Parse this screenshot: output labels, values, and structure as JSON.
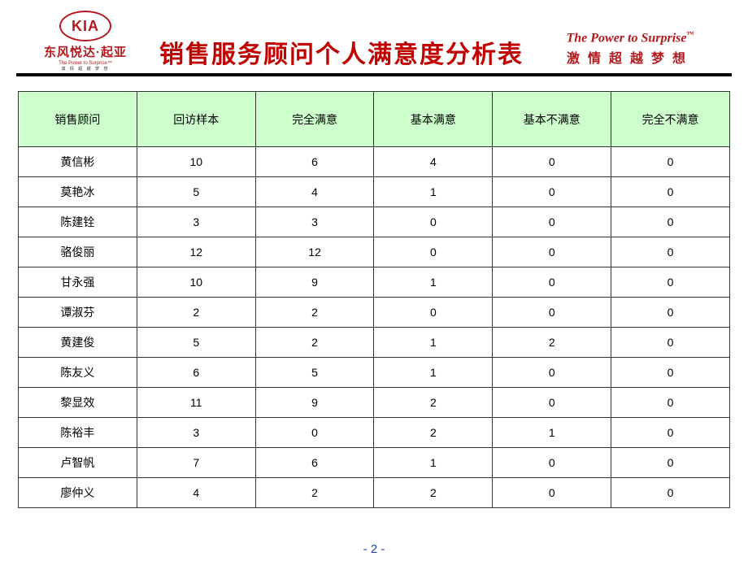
{
  "logo": {
    "brand_en": "KIA",
    "brand_cn": "东风悦达·起亚",
    "tagline_small_en": "The Power to Surprise™",
    "tagline_small_cn": "激 情 超 越 梦 想"
  },
  "title": "销售服务顾问个人满意度分析表",
  "slogan": {
    "en": "The Power to Surprise",
    "tm": "™",
    "cn": "激情超越梦想"
  },
  "table": {
    "header_bg": "#ccffcc",
    "border_color": "#333333",
    "columns": [
      "销售顾问",
      "回访样本",
      "完全满意",
      "基本满意",
      "基本不满意",
      "完全不满意"
    ],
    "rows": [
      [
        "黄信彬",
        "10",
        "6",
        "4",
        "0",
        "0"
      ],
      [
        "莫艳冰",
        "5",
        "4",
        "1",
        "0",
        "0"
      ],
      [
        "陈建铨",
        "3",
        "3",
        "0",
        "0",
        "0"
      ],
      [
        "骆俊丽",
        "12",
        "12",
        "0",
        "0",
        "0"
      ],
      [
        "甘永强",
        "10",
        "9",
        "1",
        "0",
        "0"
      ],
      [
        "谭淑芬",
        "2",
        "2",
        "0",
        "0",
        "0"
      ],
      [
        "黄建俊",
        "5",
        "2",
        "1",
        "2",
        "0"
      ],
      [
        "陈友义",
        "6",
        "5",
        "1",
        "0",
        "0"
      ],
      [
        "黎显效",
        "11",
        "9",
        "2",
        "0",
        "0"
      ],
      [
        "陈裕丰",
        "3",
        "0",
        "2",
        "1",
        "0"
      ],
      [
        "卢智帆",
        "7",
        "6",
        "1",
        "0",
        "0"
      ],
      [
        "廖仲义",
        "4",
        "2",
        "2",
        "0",
        "0"
      ]
    ]
  },
  "pager": "- 2 -",
  "colors": {
    "brand_red": "#b4191e",
    "title_red": "#c00000",
    "pager_blue": "#1f4aa8"
  }
}
